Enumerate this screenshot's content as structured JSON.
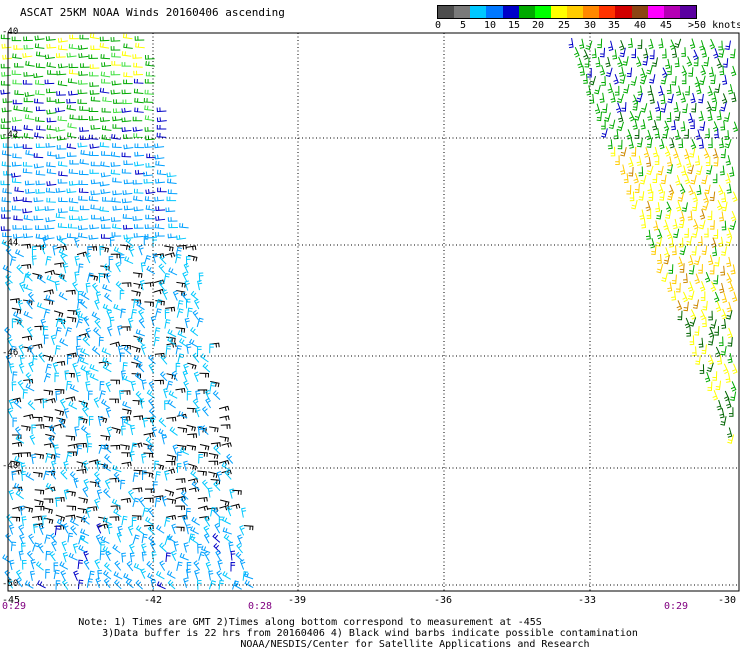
{
  "header": {
    "title": "ASCAT 25KM NOAA Winds 20160406 ascending"
  },
  "legend": {
    "colors": [
      "#4d4d4d",
      "#7a7a7a",
      "#00c8ff",
      "#0078ff",
      "#0000c8",
      "#00aa00",
      "#00ff00",
      "#ffff00",
      "#ffcc00",
      "#ff8800",
      "#ff3300",
      "#d20000",
      "#8b4513",
      "#ff00ff",
      "#b400b4",
      "#5a00a0"
    ],
    "labels": [
      "0",
      "5",
      "10",
      "15",
      "20",
      "25",
      "30",
      "35",
      "40",
      "45",
      ">50 knots"
    ]
  },
  "map": {
    "lat_labels": [
      "-40",
      "-42",
      "-44",
      "-46",
      "-48",
      "-50"
    ],
    "lon_labels": [
      "-45",
      "-42",
      "-39",
      "-36",
      "-33",
      "-30"
    ],
    "time_labels": [
      "0:29",
      "0:28",
      "0:29"
    ],
    "grid": true,
    "barb_colors": {
      "contaminated": "#000000",
      "cyan": "#00c8ff",
      "light_blue": "#00a0ff",
      "blue": "#0000c8",
      "green": "#00aa00",
      "light_green": "#40e040",
      "dark_green": "#006400",
      "yellow": "#ffff00",
      "gold": "#ffcc00",
      "orange": "#cc8800"
    }
  },
  "notes": {
    "line1": "Note: 1) Times are GMT 2)Times along bottom correspond to measurement at -45S",
    "line2": "3)Data buffer is 22 hrs from 20160406 4) Black wind barbs indicate possible contamination",
    "line3": "NOAA/NESDIS/Center for Satellite Applications and Research"
  }
}
